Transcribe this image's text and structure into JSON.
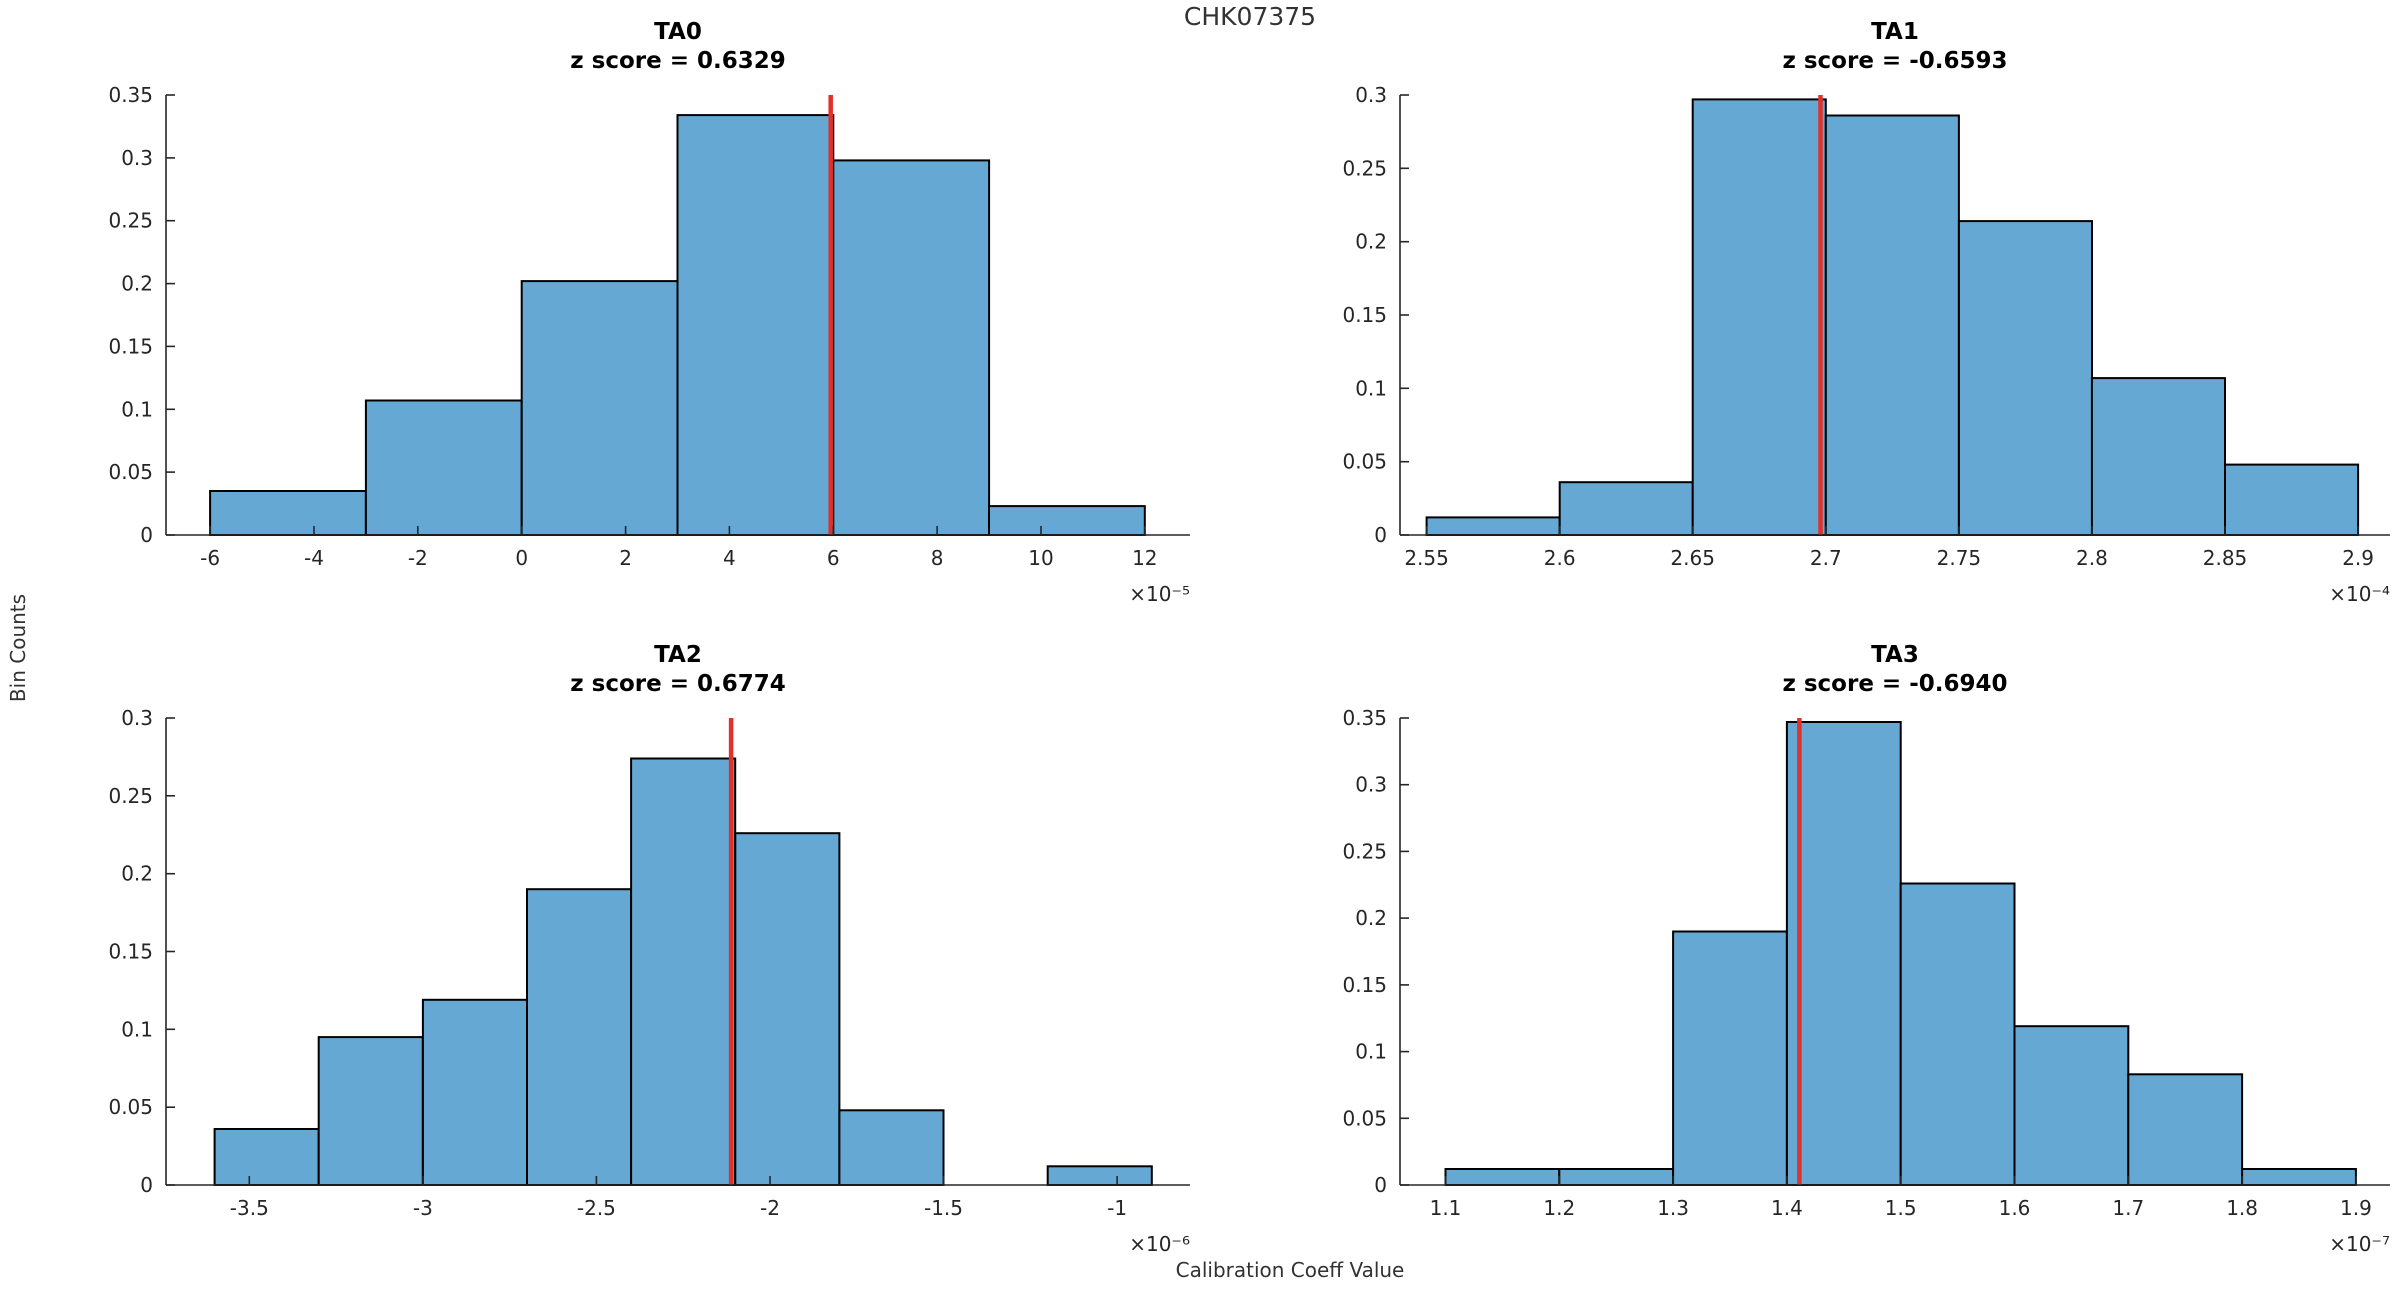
{
  "figure": {
    "title": "CHK07375",
    "x_label": "Calibration Coeff Value",
    "y_label": "Bin Counts"
  },
  "colors": {
    "bar_fill": "#66a8d4",
    "bar_edge": "#000000",
    "marker_line": "#e1312b",
    "axis": "#262626",
    "text": "#262626",
    "title_text": "#000000"
  },
  "chart_data": [
    {
      "type": "bar",
      "title": "TA0",
      "subtitle": "z score = 0.6329",
      "z_score": 0.6329,
      "x_scale_label": "×10⁻⁵",
      "bin_edges": [
        -6,
        -3,
        0,
        3,
        6,
        9,
        12
      ],
      "values": [
        0.035,
        0.107,
        0.202,
        0.334,
        0.298,
        0.023
      ],
      "marker_x": 5.95,
      "x_ticks": [
        -6,
        -4,
        -2,
        0,
        2,
        4,
        6,
        8,
        10,
        12
      ],
      "x_tick_labels": [
        "-6",
        "-4",
        "-2",
        "0",
        "2",
        "4",
        "6",
        "8",
        "10",
        "12"
      ],
      "y_ticks": [
        0,
        0.05,
        0.1,
        0.15,
        0.2,
        0.25,
        0.3,
        0.35
      ],
      "xlim": [
        -6.85,
        12.87
      ],
      "ylim": [
        0,
        0.35
      ],
      "grid": false,
      "legend": null
    },
    {
      "type": "bar",
      "title": "TA1",
      "subtitle": "z score = -0.6593",
      "z_score": -0.6593,
      "x_scale_label": "×10⁻⁴",
      "bin_edges": [
        2.55,
        2.6,
        2.65,
        2.7,
        2.75,
        2.8,
        2.85,
        2.9
      ],
      "values": [
        0.012,
        0.036,
        0.297,
        0.286,
        0.214,
        0.107,
        0.048
      ],
      "marker_x": 2.698,
      "x_ticks": [
        2.55,
        2.6,
        2.65,
        2.7,
        2.75,
        2.8,
        2.85,
        2.9
      ],
      "x_tick_labels": [
        "2.55",
        "2.6",
        "2.65",
        "2.7",
        "2.75",
        "2.8",
        "2.85",
        "2.9"
      ],
      "y_ticks": [
        0,
        0.05,
        0.1,
        0.15,
        0.2,
        0.25,
        0.3
      ],
      "xlim": [
        2.54,
        2.912
      ],
      "ylim": [
        0,
        0.3
      ],
      "grid": false,
      "legend": null
    },
    {
      "type": "bar",
      "title": "TA2",
      "subtitle": "z score = 0.6774",
      "z_score": 0.6774,
      "x_scale_label": "×10⁻⁶",
      "bin_edges": [
        -3.6,
        -3.3,
        -3.0,
        -2.7,
        -2.4,
        -2.1,
        -1.8,
        -1.5,
        -1.2,
        -0.9
      ],
      "values": [
        0.036,
        0.095,
        0.119,
        0.19,
        0.274,
        0.226,
        0.048,
        0,
        0.012
      ],
      "marker_x": -2.112,
      "x_ticks": [
        -3.5,
        -3,
        -2.5,
        -2,
        -1.5,
        -1
      ],
      "x_tick_labels": [
        "-3.5",
        "-3",
        "-2.5",
        "-2",
        "-1.5",
        "-1"
      ],
      "y_ticks": [
        0,
        0.05,
        0.1,
        0.15,
        0.2,
        0.25,
        0.3
      ],
      "xlim": [
        -3.74,
        -0.79
      ],
      "ylim": [
        0,
        0.3
      ],
      "grid": false,
      "legend": null
    },
    {
      "type": "bar",
      "title": "TA3",
      "subtitle": "z score = -0.6940",
      "z_score": -0.694,
      "x_scale_label": "×10⁻⁷",
      "bin_edges": [
        1.1,
        1.2,
        1.3,
        1.4,
        1.5,
        1.6,
        1.7,
        1.8,
        1.9
      ],
      "values": [
        0.012,
        0.012,
        0.19,
        0.347,
        0.226,
        0.119,
        0.083,
        0.012
      ],
      "marker_x": 1.411,
      "x_ticks": [
        1.1,
        1.2,
        1.3,
        1.4,
        1.5,
        1.6,
        1.7,
        1.8,
        1.9
      ],
      "x_tick_labels": [
        "1.1",
        "1.2",
        "1.3",
        "1.4",
        "1.5",
        "1.6",
        "1.7",
        "1.8",
        "1.9"
      ],
      "y_ticks": [
        0,
        0.05,
        0.1,
        0.15,
        0.2,
        0.25,
        0.3,
        0.35
      ],
      "xlim": [
        1.06,
        1.93
      ],
      "ylim": [
        0,
        0.35
      ],
      "grid": false,
      "legend": null
    }
  ]
}
